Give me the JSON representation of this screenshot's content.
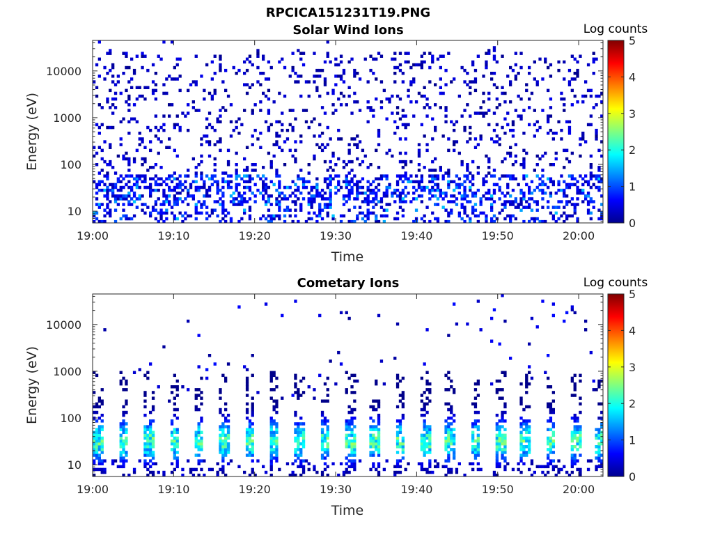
{
  "figure": {
    "title": "RPCICA151231T19.PNG"
  },
  "chart_data": [
    {
      "type": "heatmap",
      "title": "Solar Wind Ions",
      "xlabel": "Time",
      "ylabel": "Energy (eV)",
      "x_ticks": [
        "19:00",
        "19:10",
        "19:20",
        "19:30",
        "19:40",
        "19:50",
        "20:00"
      ],
      "x_range_minutes": [
        0,
        63
      ],
      "y_scale": "log",
      "y_ticks": [
        "10",
        "100",
        "1000",
        "10000"
      ],
      "ylim": [
        5.6,
        45000
      ],
      "colorbar": {
        "label": "Log counts",
        "ticks": [
          "0",
          "1",
          "2",
          "3",
          "4",
          "5"
        ],
        "range": [
          0,
          5
        ],
        "colormap": "jet"
      },
      "description": "sparse scatter of low counts (log ~0-1) across 10-20000 eV, denser bands near 10-50 eV",
      "density": 0.12,
      "low_band_density": 0.55,
      "seed": 7
    },
    {
      "type": "heatmap",
      "title": "Cometary Ions",
      "xlabel": "Time",
      "ylabel": "Energy (eV)",
      "x_ticks": [
        "19:00",
        "19:10",
        "19:20",
        "19:30",
        "19:40",
        "19:50",
        "20:00"
      ],
      "x_range_minutes": [
        0,
        63
      ],
      "y_scale": "log",
      "y_ticks": [
        "10",
        "100",
        "1000",
        "10000"
      ],
      "ylim": [
        5.6,
        45000
      ],
      "colorbar": {
        "label": "Log counts",
        "ticks": [
          "0",
          "1",
          "2",
          "3",
          "4",
          "5"
        ],
        "range": [
          0,
          5
        ],
        "colormap": "jet"
      },
      "burst_period_minutes": 3.1,
      "burst_peak_energy_eV": 30,
      "burst_peak_log_counts": 2.6,
      "seed": 11
    }
  ]
}
